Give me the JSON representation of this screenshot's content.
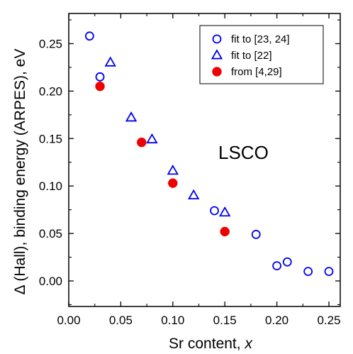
{
  "chart_data": {
    "type": "scatter",
    "xlabel": "Sr content, x",
    "xlabel_parts": {
      "text": "Sr content, ",
      "italic": "x"
    },
    "ylabel": "Δ (Hall), binding energy (ARPES),   eV",
    "xlim": [
      0.0,
      0.27
    ],
    "ylim": [
      -0.025,
      0.28
    ],
    "x_ticks": [
      0.0,
      0.05,
      0.1,
      0.15,
      0.2,
      0.25
    ],
    "x_tick_labels": [
      "0.00",
      "0.05",
      "0.10",
      "0.15",
      "0.20",
      "0.25"
    ],
    "y_ticks": [
      0.0,
      0.05,
      0.1,
      0.15,
      0.2,
      0.25
    ],
    "y_tick_labels": [
      "0.00",
      "0.05",
      "0.10",
      "0.15",
      "0.20",
      "0.25"
    ],
    "grid": false,
    "legend_position": "top-right",
    "annotation": "LSCO",
    "series": [
      {
        "name": "fit to [23, 24]",
        "marker": "open-circle",
        "color": "#0000ee",
        "points": [
          [
            0.02,
            0.258
          ],
          [
            0.03,
            0.215
          ],
          [
            0.14,
            0.074
          ],
          [
            0.18,
            0.049
          ],
          [
            0.2,
            0.016
          ],
          [
            0.21,
            0.02
          ],
          [
            0.23,
            0.01
          ],
          [
            0.25,
            0.01
          ]
        ]
      },
      {
        "name": "fit to [22]",
        "marker": "open-triangle",
        "color": "#0000ee",
        "points": [
          [
            0.04,
            0.23
          ],
          [
            0.06,
            0.172
          ],
          [
            0.08,
            0.149
          ],
          [
            0.1,
            0.116
          ],
          [
            0.12,
            0.09
          ],
          [
            0.15,
            0.072
          ]
        ]
      },
      {
        "name": "from [4,29]",
        "marker": "filled-circle",
        "color": "#ee0000",
        "points": [
          [
            0.03,
            0.205
          ],
          [
            0.07,
            0.146
          ],
          [
            0.1,
            0.103
          ],
          [
            0.15,
            0.052
          ]
        ]
      }
    ]
  }
}
